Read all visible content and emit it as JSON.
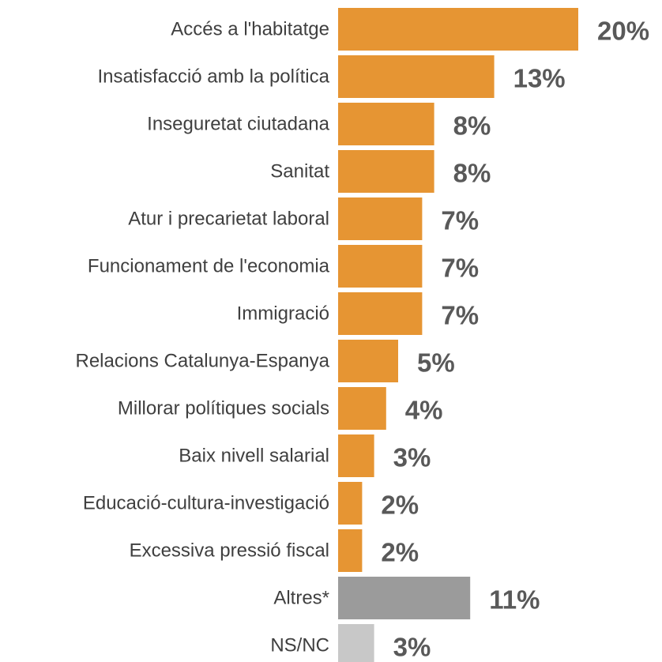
{
  "chart_data": {
    "type": "bar",
    "orientation": "horizontal",
    "title": "",
    "xlabel": "",
    "ylabel": "",
    "unit": "%",
    "xlim": [
      0,
      20
    ],
    "grid": false,
    "legend": "none",
    "bars": [
      {
        "label": "Accés a l'habitatge",
        "value": 20,
        "value_label": "20%",
        "color": "#e69533"
      },
      {
        "label": "Insatisfacció amb la política",
        "value": 13,
        "value_label": "13%",
        "color": "#e69533"
      },
      {
        "label": "Inseguretat ciutadana",
        "value": 8,
        "value_label": "8%",
        "color": "#e69533"
      },
      {
        "label": "Sanitat",
        "value": 8,
        "value_label": "8%",
        "color": "#e69533"
      },
      {
        "label": "Atur i precarietat laboral",
        "value": 7,
        "value_label": "7%",
        "color": "#e69533"
      },
      {
        "label": "Funcionament de l'economia",
        "value": 7,
        "value_label": "7%",
        "color": "#e69533"
      },
      {
        "label": "Immigració",
        "value": 7,
        "value_label": "7%",
        "color": "#e69533"
      },
      {
        "label": "Relacions Catalunya-Espanya",
        "value": 5,
        "value_label": "5%",
        "color": "#e69533"
      },
      {
        "label": "Millorar polítiques socials",
        "value": 4,
        "value_label": "4%",
        "color": "#e69533"
      },
      {
        "label": "Baix nivell salarial",
        "value": 3,
        "value_label": "3%",
        "color": "#e69533"
      },
      {
        "label": "Educació-cultura-investigació",
        "value": 2,
        "value_label": "2%",
        "color": "#e69533"
      },
      {
        "label": "Excessiva pressió fiscal",
        "value": 2,
        "value_label": "2%",
        "color": "#e69533"
      },
      {
        "label": "Altres*",
        "value": 11,
        "value_label": "11%",
        "color": "#9b9b9b"
      },
      {
        "label": "NS/NC",
        "value": 3,
        "value_label": "3%",
        "color": "#c8c8c8"
      }
    ]
  }
}
